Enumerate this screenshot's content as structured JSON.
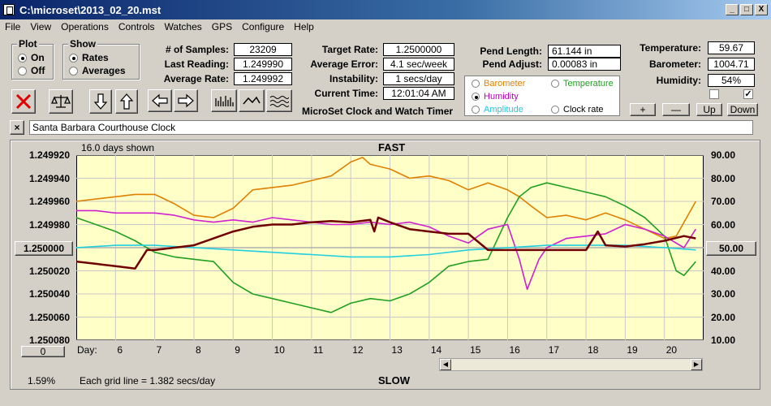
{
  "window": {
    "title": "C:\\microset\\2013_02_20.mst",
    "min": "_",
    "max": "□",
    "close": "X"
  },
  "menu": [
    "File",
    "View",
    "Operations",
    "Controls",
    "Watches",
    "GPS",
    "Configure",
    "Help"
  ],
  "plot_group": {
    "title": "Plot",
    "on": "On",
    "off": "Off",
    "selected": "On"
  },
  "show_group": {
    "title": "Show",
    "rates": "Rates",
    "averages": "Averages",
    "selected": "Rates"
  },
  "stats": {
    "samples_label": "# of Samples:",
    "samples": "23209",
    "last_label": "Last Reading:",
    "last": "1.249990",
    "avg_rate_label": "Average Rate:",
    "avg_rate": "1.249992"
  },
  "rates": {
    "target_label": "Target Rate:",
    "target": "1.2500000",
    "avg_err_label": "Average Error:",
    "avg_err": "4.1 sec/week",
    "instab_label": "Instability:",
    "instab": "1 secs/day",
    "time_label": "Current Time:",
    "time": "12:01:04 AM"
  },
  "app_name": "MicroSet Clock and Watch Timer",
  "pend": {
    "length_label": "Pend Length:",
    "length": "61.144 in",
    "adjust_label": "Pend Adjust:",
    "adjust": "0.00083 in"
  },
  "env": {
    "temp_label": "Temperature:",
    "temp": "59.67",
    "baro_label": "Barometer:",
    "baro": "1004.71",
    "hum_label": "Humidity:",
    "hum": "54%"
  },
  "aux_legend": {
    "barometer": "Barometer",
    "temperature": "Temperature",
    "humidity": "Humidity",
    "amplitude": "Amplitude",
    "clock_rate": "Clock rate",
    "selected": "Humidity"
  },
  "scale_buttons": {
    "plus": "+",
    "minus": "—",
    "up": "Up",
    "down": "Down"
  },
  "checkboxes": {
    "left_checked": false,
    "right_checked": true
  },
  "description": "Santa Barbara Courthouse Clock",
  "colors": {
    "barometer": "#e08000",
    "temperature": "#20a020",
    "humidity": "#d020d0",
    "amplitude": "#20d0e0",
    "clock_rate": "#700000",
    "plot_bg": "#ffffc8"
  },
  "chart_data": {
    "type": "line",
    "top_label": "FAST",
    "bottom_label": "SLOW",
    "days_shown": "16.0 days shown",
    "grid_note": "Each grid line = 1.382 secs/day",
    "percent": "1.59%",
    "scroll_label": "0",
    "left_center_label": "1.250000",
    "right_center_label": "50.00",
    "xlabel": "Day:",
    "ylim_left": [
      1.25008,
      1.24992
    ],
    "ylim_right": [
      10,
      90
    ],
    "xlim": [
      5,
      21
    ],
    "left_ticks": [
      "1.249920",
      "1.249940",
      "1.249960",
      "1.249980",
      "1.250000",
      "1.250020",
      "1.250040",
      "1.250060",
      "1.250080"
    ],
    "right_ticks": [
      "90.00",
      "80.00",
      "70.00",
      "60.00",
      "50.00",
      "40.00",
      "30.00",
      "20.00",
      "10.00"
    ],
    "x_ticks": [
      6,
      7,
      8,
      9,
      10,
      11,
      12,
      13,
      14,
      15,
      16,
      17,
      18,
      19,
      20
    ],
    "series": [
      {
        "name": "Barometer",
        "axis": "right",
        "color": "#e08000",
        "x": [
          5,
          5.5,
          6,
          6.5,
          7,
          7.5,
          8,
          8.5,
          9,
          9.5,
          10,
          10.5,
          11,
          11.5,
          12,
          12.3,
          12.5,
          13,
          13.5,
          14,
          14.5,
          15,
          15.5,
          16,
          16.3,
          16.6,
          17,
          17.5,
          18,
          18.5,
          19,
          19.5,
          20,
          20.3,
          20.8
        ],
        "y": [
          70,
          71,
          72,
          73,
          73,
          69,
          64,
          63,
          67,
          75,
          76,
          77,
          79,
          81,
          87,
          89,
          86,
          84,
          80,
          81,
          79,
          75,
          78,
          75,
          72,
          68,
          63,
          64,
          62,
          65,
          62,
          58,
          54,
          55,
          70
        ]
      },
      {
        "name": "Temperature",
        "axis": "right",
        "color": "#20a020",
        "x": [
          5,
          5.5,
          6,
          6.5,
          7,
          7.5,
          8,
          8.5,
          9,
          9.5,
          10,
          10.5,
          11,
          11.5,
          12,
          12.5,
          13,
          13.5,
          14,
          14.5,
          15,
          15.5,
          16,
          16.3,
          16.6,
          17,
          17.5,
          18,
          18.5,
          19,
          19.5,
          20,
          20.3,
          20.5,
          20.8
        ],
        "y": [
          63,
          60,
          57,
          53,
          48,
          46,
          45,
          44,
          35,
          30,
          28,
          26,
          24,
          22,
          26,
          28,
          27,
          30,
          35,
          42,
          44,
          45,
          63,
          72,
          76,
          78,
          76,
          74,
          72,
          68,
          63,
          55,
          40,
          38,
          44
        ]
      },
      {
        "name": "Humidity",
        "axis": "right",
        "color": "#d020d0",
        "x": [
          5,
          5.5,
          6,
          6.5,
          7,
          7.5,
          8,
          8.5,
          9,
          9.5,
          10,
          10.5,
          11,
          11.5,
          12,
          12.5,
          13,
          13.5,
          14,
          14.5,
          15,
          15.5,
          16,
          16.3,
          16.5,
          16.8,
          17,
          17.5,
          18,
          18.5,
          19,
          19.5,
          20,
          20.5,
          20.8
        ],
        "y": [
          66,
          66,
          65,
          65,
          65,
          64,
          62,
          61,
          62,
          61,
          63,
          62,
          61,
          60,
          60,
          61,
          60,
          61,
          59,
          55,
          52,
          58,
          60,
          45,
          32,
          45,
          50,
          54,
          55,
          56,
          60,
          58,
          55,
          50,
          58
        ]
      },
      {
        "name": "Amplitude",
        "axis": "right",
        "color": "#20d0e0",
        "x": [
          5,
          6,
          7,
          8,
          9,
          10,
          11,
          12,
          13,
          14,
          15,
          16,
          17,
          18,
          19,
          20,
          20.8
        ],
        "y": [
          50,
          51,
          51,
          50,
          49,
          48,
          47,
          46,
          46,
          47,
          49,
          50,
          51,
          51,
          51,
          50,
          49
        ]
      },
      {
        "name": "Clock rate",
        "axis": "left",
        "color": "#700000",
        "x": [
          5,
          5.5,
          6,
          6.5,
          6.8,
          7,
          7.5,
          8,
          8.5,
          9,
          9.5,
          10,
          10.5,
          11,
          11.5,
          12,
          12.5,
          12.6,
          12.7,
          13,
          13.5,
          14,
          14.5,
          15,
          15.5,
          16,
          16.5,
          17,
          17.5,
          18,
          18.3,
          18.5,
          19,
          19.5,
          20,
          20.5,
          20.8
        ],
        "y": [
          1.250012,
          1.250014,
          1.250016,
          1.250018,
          1.250002,
          1.250002,
          1.25,
          1.249998,
          1.249992,
          1.249986,
          1.249982,
          1.24998,
          1.24998,
          1.249978,
          1.249977,
          1.249978,
          1.249976,
          1.249986,
          1.249974,
          1.249978,
          1.249984,
          1.249986,
          1.249988,
          1.249988,
          1.250002,
          1.250002,
          1.250002,
          1.250002,
          1.250002,
          1.250002,
          1.249986,
          1.249998,
          1.249999,
          1.249997,
          1.249994,
          1.24999,
          1.249992
        ]
      }
    ]
  }
}
